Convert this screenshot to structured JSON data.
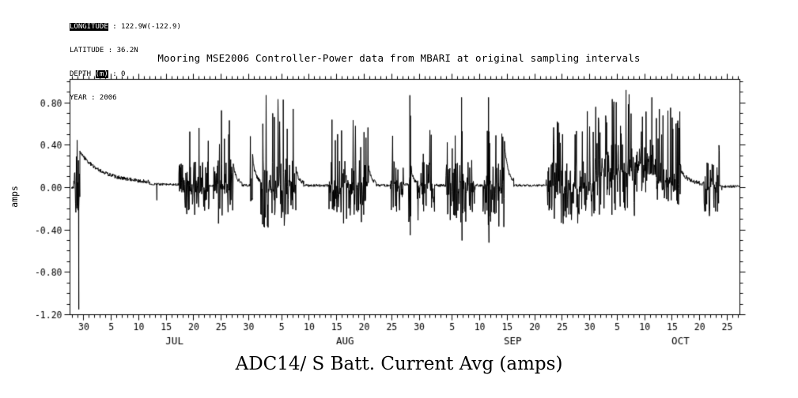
{
  "meta": {
    "lines": [
      {
        "pre": "",
        "inv": "LONGITUDE",
        "post": " : 122.9W(-122.9)"
      },
      {
        "pre": "LATITUDE : 36.2N",
        "inv": "",
        "post": ""
      },
      {
        "pre": "DEPTH ",
        "inv": "(m)",
        "post": " : 0"
      },
      {
        "pre": "YEAR : 2006",
        "inv": "",
        "post": ""
      }
    ]
  },
  "chart_data": {
    "type": "line",
    "title": "Mooring MSE2006 Controller-Power data from MBARI at original sampling intervals",
    "ylabel": "amps",
    "caption": "ADC14/ S Batt. Current Avg (amps)",
    "series_name": "S Batt. Current Avg",
    "units": "amps",
    "year": "2006",
    "background": "#ffffff",
    "line_color": "#000000",
    "ylim": [
      -1.2,
      1.02
    ],
    "yticks": [
      0.8,
      0.4,
      0.0,
      -0.4,
      -0.8,
      -1.2
    ],
    "ytick_minor_step": 0.1,
    "xlim_doy": [
      178.5,
      300.3
    ],
    "xtick_minor_step_days": 1,
    "xticks": [
      {
        "doy": 181,
        "label": "30"
      },
      {
        "doy": 186,
        "label": "5"
      },
      {
        "doy": 191,
        "label": "10"
      },
      {
        "doy": 196,
        "label": "15"
      },
      {
        "doy": 201,
        "label": "20"
      },
      {
        "doy": 206,
        "label": "25"
      },
      {
        "doy": 211,
        "label": "30"
      },
      {
        "doy": 217,
        "label": "5"
      },
      {
        "doy": 222,
        "label": "10"
      },
      {
        "doy": 227,
        "label": "15"
      },
      {
        "doy": 232,
        "label": "20"
      },
      {
        "doy": 237,
        "label": "25"
      },
      {
        "doy": 242,
        "label": "30"
      },
      {
        "doy": 248,
        "label": "5"
      },
      {
        "doy": 253,
        "label": "10"
      },
      {
        "doy": 258,
        "label": "15"
      },
      {
        "doy": 263,
        "label": "20"
      },
      {
        "doy": 268,
        "label": "25"
      },
      {
        "doy": 273,
        "label": "30"
      },
      {
        "doy": 278,
        "label": "5"
      },
      {
        "doy": 283,
        "label": "10"
      },
      {
        "doy": 288,
        "label": "15"
      },
      {
        "doy": 293,
        "label": "20"
      },
      {
        "doy": 298,
        "label": "25"
      }
    ],
    "months": [
      {
        "name": "JUL",
        "center_doy": 197.5
      },
      {
        "name": "AUG",
        "center_doy": 228.5
      },
      {
        "name": "SEP",
        "center_doy": 259.0
      },
      {
        "name": "OCT",
        "center_doy": 289.5
      }
    ],
    "series_spec": {
      "seed": 20060628,
      "step_days": 0.06,
      "segments": [
        {
          "t0": 178.8,
          "t1": 179.2,
          "mode": "quiet",
          "base": 0.0,
          "noise": 0.012
        },
        {
          "t0": 179.2,
          "t1": 180.3,
          "mode": "burst",
          "base": 0.08,
          "band": 0.28,
          "up": 0.66,
          "down": -0.25,
          "rate": 0.25
        },
        {
          "t0": 180.3,
          "t1": 193.0,
          "mode": "decay",
          "from": 0.33,
          "to": 0.04,
          "noise": 0.018
        },
        {
          "t0": 193.0,
          "t1": 198.3,
          "mode": "quiet",
          "base": 0.03,
          "noise": 0.012
        },
        {
          "t0": 198.3,
          "t1": 203.8,
          "mode": "burst",
          "base": 0.0,
          "band": 0.26,
          "up": 0.63,
          "down": -0.34,
          "rate": 0.18
        },
        {
          "t0": 203.8,
          "t1": 204.6,
          "mode": "quiet",
          "base": 0.02,
          "noise": 0.015
        },
        {
          "t0": 204.6,
          "t1": 208.2,
          "mode": "burst",
          "base": 0.0,
          "band": 0.27,
          "up": 0.74,
          "down": -0.36,
          "rate": 0.2
        },
        {
          "t0": 208.2,
          "t1": 209.8,
          "mode": "decay",
          "from": 0.22,
          "to": 0.04,
          "noise": 0.02
        },
        {
          "t0": 209.8,
          "t1": 211.3,
          "mode": "quiet",
          "base": 0.02,
          "noise": 0.012
        },
        {
          "t0": 211.3,
          "t1": 211.7,
          "mode": "burst",
          "base": 0.1,
          "band": 0.3,
          "up": 0.85,
          "down": -0.12,
          "rate": 0.3
        },
        {
          "t0": 211.7,
          "t1": 213.2,
          "mode": "decay",
          "from": 0.3,
          "to": 0.05,
          "noise": 0.02
        },
        {
          "t0": 213.2,
          "t1": 219.6,
          "mode": "burst",
          "base": 0.0,
          "band": 0.28,
          "up": 0.88,
          "down": -0.38,
          "rate": 0.2
        },
        {
          "t0": 219.6,
          "t1": 221.0,
          "mode": "decay",
          "from": 0.18,
          "to": 0.04,
          "noise": 0.02
        },
        {
          "t0": 221.0,
          "t1": 225.6,
          "mode": "quiet",
          "base": 0.02,
          "noise": 0.013
        },
        {
          "t0": 225.6,
          "t1": 232.8,
          "mode": "burst",
          "base": 0.0,
          "band": 0.26,
          "up": 0.66,
          "down": -0.36,
          "rate": 0.17
        },
        {
          "t0": 232.8,
          "t1": 234.2,
          "mode": "decay",
          "from": 0.2,
          "to": 0.04,
          "noise": 0.02
        },
        {
          "t0": 234.2,
          "t1": 236.8,
          "mode": "quiet",
          "base": 0.02,
          "noise": 0.012
        },
        {
          "t0": 236.8,
          "t1": 239.2,
          "mode": "burst",
          "base": 0.0,
          "band": 0.25,
          "up": 0.6,
          "down": -0.32,
          "rate": 0.15
        },
        {
          "t0": 239.2,
          "t1": 240.1,
          "mode": "quiet",
          "base": 0.03,
          "noise": 0.012
        },
        {
          "t0": 240.1,
          "t1": 240.5,
          "mode": "burst",
          "base": 0.05,
          "band": 0.3,
          "up": 0.87,
          "down": -0.45,
          "rate": 0.35
        },
        {
          "t0": 240.5,
          "t1": 241.6,
          "mode": "decay",
          "from": 0.2,
          "to": 0.04,
          "noise": 0.018
        },
        {
          "t0": 241.6,
          "t1": 244.8,
          "mode": "burst",
          "base": 0.0,
          "band": 0.24,
          "up": 0.55,
          "down": -0.33,
          "rate": 0.15
        },
        {
          "t0": 244.8,
          "t1": 246.8,
          "mode": "quiet",
          "base": 0.02,
          "noise": 0.013
        },
        {
          "t0": 246.8,
          "t1": 252.2,
          "mode": "burst",
          "base": 0.0,
          "band": 0.26,
          "up": 0.62,
          "down": -0.36,
          "rate": 0.16
        },
        {
          "t0": 252.2,
          "t1": 253.6,
          "mode": "quiet",
          "base": 0.02,
          "noise": 0.013
        },
        {
          "t0": 253.6,
          "t1": 257.5,
          "mode": "burst",
          "base": 0.0,
          "band": 0.27,
          "up": 0.66,
          "down": -0.4,
          "rate": 0.17
        },
        {
          "t0": 257.5,
          "t1": 259.2,
          "mode": "decay",
          "from": 0.42,
          "to": 0.05,
          "noise": 0.02
        },
        {
          "t0": 259.2,
          "t1": 265.3,
          "mode": "quiet",
          "base": 0.02,
          "noise": 0.012
        },
        {
          "t0": 265.3,
          "t1": 273.8,
          "mode": "burst",
          "base": 0.0,
          "band": 0.27,
          "up": 0.72,
          "down": -0.35,
          "rate": 0.18
        },
        {
          "t0": 273.8,
          "t1": 281.2,
          "mode": "burst",
          "base": 0.12,
          "band": 0.3,
          "up": 0.9,
          "down": -0.3,
          "rate": 0.22
        },
        {
          "t0": 281.2,
          "t1": 285.0,
          "mode": "burst",
          "base": 0.18,
          "band": 0.22,
          "up": 0.82,
          "down": -0.05,
          "rate": 0.18
        },
        {
          "t0": 285.0,
          "t1": 289.6,
          "mode": "burst",
          "base": 0.05,
          "band": 0.2,
          "up": 0.76,
          "down": -0.22,
          "rate": 0.16
        },
        {
          "t0": 289.6,
          "t1": 293.8,
          "mode": "decay",
          "from": 0.16,
          "to": 0.03,
          "noise": 0.02
        },
        {
          "t0": 293.8,
          "t1": 296.6,
          "mode": "burst",
          "base": 0.0,
          "band": 0.24,
          "up": 0.63,
          "down": -0.28,
          "rate": 0.16
        },
        {
          "t0": 296.6,
          "t1": 300.2,
          "mode": "quiet",
          "base": 0.01,
          "noise": 0.012
        }
      ],
      "events": [
        {
          "t": 180.1,
          "v": -1.15
        },
        {
          "t": 194.3,
          "v": -0.12
        },
        {
          "t": 240.3,
          "v": 0.87
        },
        {
          "t": 240.36,
          "v": -0.45
        },
        {
          "t": 249.7,
          "v": 0.85
        },
        {
          "t": 249.78,
          "v": -0.5
        },
        {
          "t": 254.6,
          "v": 0.85
        },
        {
          "t": 254.68,
          "v": -0.52
        },
        {
          "t": 279.6,
          "v": 0.92
        },
        {
          "t": 284.3,
          "v": 0.85
        }
      ]
    }
  }
}
